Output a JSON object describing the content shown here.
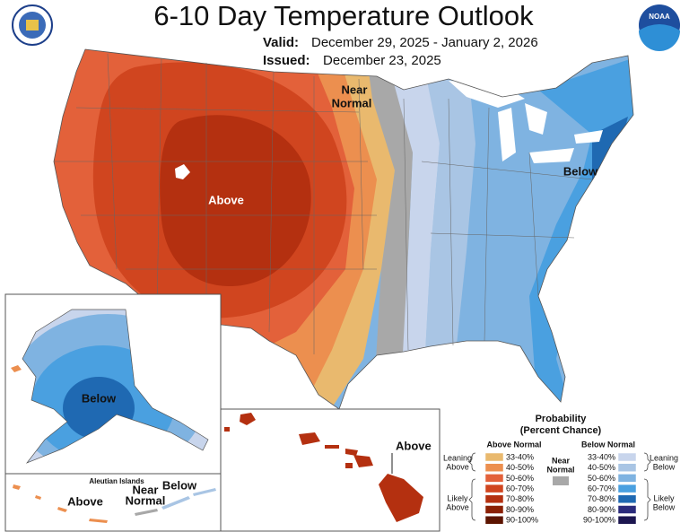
{
  "header": {
    "title": "6-10 Day Temperature Outlook",
    "valid_label": "Valid:",
    "valid": "December 29, 2025 - January 2, 2026",
    "issued_label": "Issued:",
    "issued": "December 23, 2025"
  },
  "logos": {
    "noaa": "NOAA"
  },
  "map_labels": {
    "near_normal": [
      "Near",
      "Normal"
    ],
    "above": "Above",
    "below": "Below"
  },
  "insets": {
    "alaska": {
      "label": "Below"
    },
    "hawaii": {
      "label": "Above"
    },
    "aleutian": {
      "title": "Aleutian Islands",
      "above": "Above",
      "near_normal": [
        "Near",
        "Normal"
      ],
      "below": "Below"
    }
  },
  "legend": {
    "title": [
      "Probability",
      "(Percent Chance)"
    ],
    "above": {
      "heading": "Above Normal",
      "categories": [
        {
          "label": "33-40%",
          "color": "#e9b96e"
        },
        {
          "label": "40-50%",
          "color": "#ec8f4f"
        },
        {
          "label": "50-60%",
          "color": "#e3613a"
        },
        {
          "label": "60-70%",
          "color": "#d0451f"
        },
        {
          "label": "70-80%",
          "color": "#b43010"
        },
        {
          "label": "80-90%",
          "color": "#8b2004"
        },
        {
          "label": "90-100%",
          "color": "#5c1400"
        }
      ],
      "leaning": [
        "Leaning",
        "Above"
      ],
      "likely": [
        "Likely",
        "Above"
      ]
    },
    "below": {
      "heading": "Below Normal",
      "categories": [
        {
          "label": "33-40%",
          "color": "#c8d5ec"
        },
        {
          "label": "40-50%",
          "color": "#a9c5e4"
        },
        {
          "label": "50-60%",
          "color": "#7fb3e1"
        },
        {
          "label": "60-70%",
          "color": "#4aa0e0"
        },
        {
          "label": "70-80%",
          "color": "#1f69b2"
        },
        {
          "label": "80-90%",
          "color": "#2b2b7c"
        },
        {
          "label": "90-100%",
          "color": "#1c1650"
        }
      ],
      "leaning": [
        "Leaning",
        "Below"
      ],
      "likely": [
        "Likely",
        "Below"
      ]
    },
    "near": {
      "label": [
        "Near",
        "Normal"
      ],
      "color": "#a8a8a8"
    }
  }
}
